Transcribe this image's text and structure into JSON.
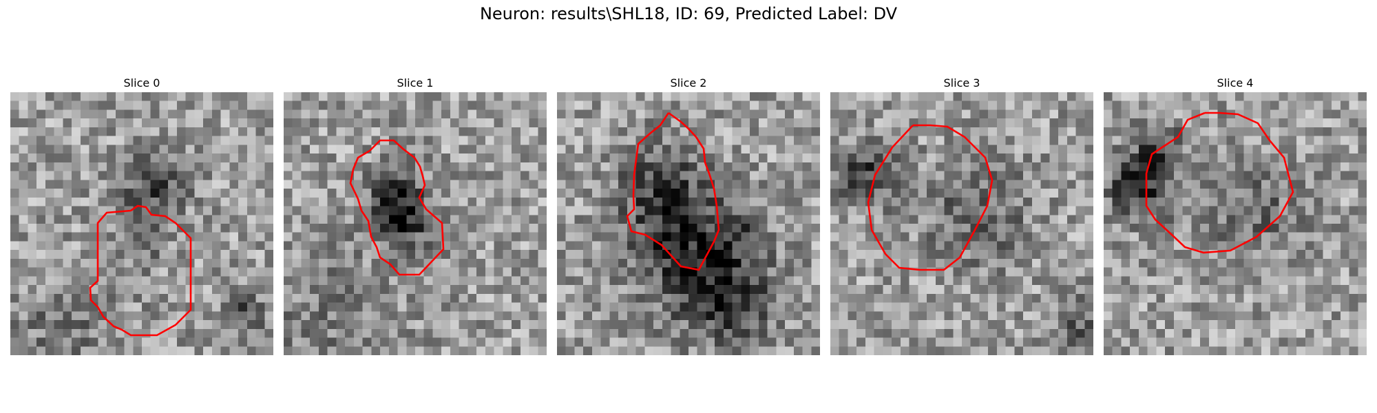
{
  "suptitle": "Neuron: results\\SHL18, ID: 69, Predicted Label: DV",
  "contour_color": "#ff0000",
  "colormap": "gray",
  "slices": [
    {
      "title": "Slice 0"
    },
    {
      "title": "Slice 1"
    },
    {
      "title": "Slice 2"
    },
    {
      "title": "Slice 3"
    },
    {
      "title": "Slice 4"
    }
  ]
}
